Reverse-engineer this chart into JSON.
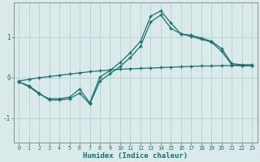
{
  "xlabel": "Humidex (Indice chaleur)",
  "ylabel": "",
  "background_color": "#daeaea",
  "line_color": "#1a7070",
  "grid_color": "#b8d4d4",
  "xlim": [
    -0.5,
    23.5
  ],
  "ylim": [
    -1.6,
    1.85
  ],
  "yticks": [
    -1,
    0,
    1
  ],
  "xticks": [
    0,
    1,
    2,
    3,
    4,
    5,
    6,
    7,
    8,
    9,
    10,
    11,
    12,
    13,
    14,
    15,
    16,
    17,
    18,
    19,
    20,
    21,
    22,
    23
  ],
  "lines": [
    {
      "x": [
        0,
        1,
        2,
        3,
        4,
        5,
        6,
        7,
        8,
        9,
        10,
        11,
        12,
        13,
        14,
        15,
        16,
        17,
        18,
        19,
        20,
        21,
        22,
        23
      ],
      "y": [
        -0.08,
        -0.04,
        0.0,
        0.03,
        0.06,
        0.09,
        0.12,
        0.15,
        0.17,
        0.19,
        0.21,
        0.22,
        0.23,
        0.24,
        0.25,
        0.26,
        0.27,
        0.28,
        0.29,
        0.29,
        0.3,
        0.3,
        0.3,
        0.3
      ]
    },
    {
      "x": [
        0,
        1,
        2,
        3,
        4,
        5,
        6,
        7,
        8,
        9,
        10,
        11,
        12,
        13,
        14,
        15,
        16,
        17,
        18,
        19,
        20,
        21,
        22,
        23
      ],
      "y": [
        -0.1,
        -0.2,
        -0.38,
        -0.55,
        -0.55,
        -0.52,
        -0.38,
        -0.65,
        -0.08,
        0.1,
        0.28,
        0.5,
        0.78,
        1.38,
        1.55,
        1.22,
        1.08,
        1.02,
        0.95,
        0.88,
        0.65,
        0.32,
        0.3,
        0.3
      ]
    },
    {
      "x": [
        0,
        1,
        2,
        3,
        4,
        5,
        6,
        7,
        8,
        9,
        10,
        11,
        12,
        13,
        14,
        15,
        16,
        17,
        18,
        19,
        20,
        21,
        22,
        23
      ],
      "y": [
        -0.1,
        -0.22,
        -0.4,
        -0.52,
        -0.52,
        -0.48,
        -0.28,
        -0.62,
        0.02,
        0.18,
        0.38,
        0.62,
        0.9,
        1.52,
        1.65,
        1.35,
        1.08,
        1.05,
        0.98,
        0.9,
        0.72,
        0.35,
        0.32,
        0.32
      ]
    }
  ]
}
